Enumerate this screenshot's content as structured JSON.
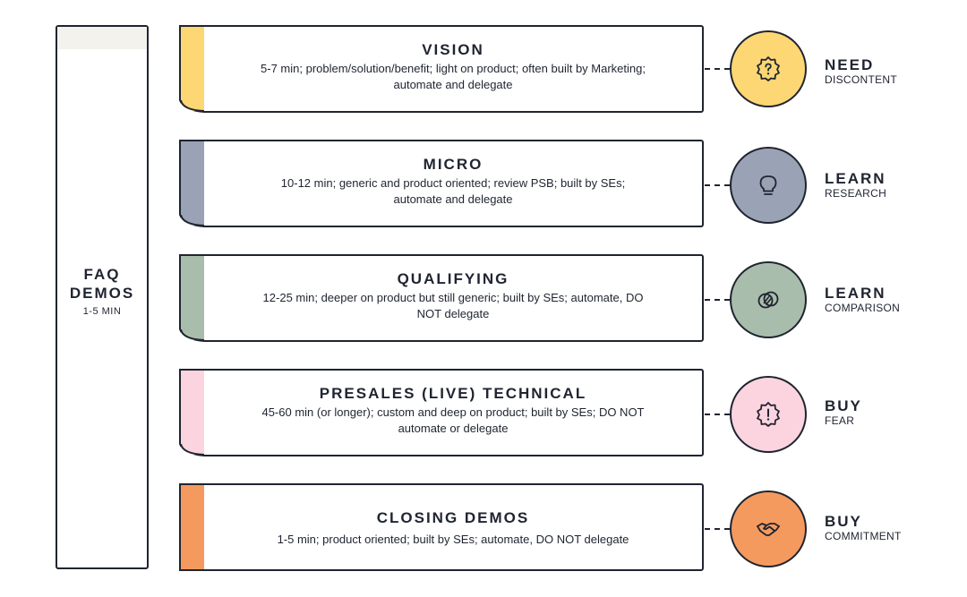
{
  "faq": {
    "title_line1": "FAQ",
    "title_line2": "DEMOS",
    "duration": "1-5 MIN"
  },
  "stages": [
    {
      "title": "VISION",
      "description": "5-7 min; problem/solution/benefit; light on product; often built by Marketing; automate and delegate",
      "accent": "#fdd774",
      "circle_color": "#fdd774",
      "icon": "question-badge-icon",
      "label": "NEED",
      "sublabel": "DISCONTENT"
    },
    {
      "title": "MICRO",
      "description": "10-12 min; generic and product oriented; review PSB; built by SEs; automate and delegate",
      "accent": "#9aa3b5",
      "circle_color": "#9aa3b5",
      "icon": "lightbulb-icon",
      "label": "LEARN",
      "sublabel": "RESEARCH"
    },
    {
      "title": "QUALIFYING",
      "description": "12-25 min; deeper on product but still generic; built by SEs; automate, DO NOT delegate",
      "accent": "#a9bdac",
      "circle_color": "#a9bdac",
      "icon": "overlapping-circles-icon",
      "label": "LEARN",
      "sublabel": "COMPARISON"
    },
    {
      "title": "PRESALES (LIVE) TECHNICAL",
      "description": "45-60 min (or longer); custom and deep on product; built by SEs; DO NOT automate or delegate",
      "accent": "#fbd4df",
      "circle_color": "#fbd4df",
      "icon": "alert-badge-icon",
      "label": "BUY",
      "sublabel": "FEAR"
    },
    {
      "title": "CLOSING DEMOS",
      "description": "1-5 min; product oriented; built by SEs; automate, DO NOT delegate",
      "accent": "#f59a5e",
      "circle_color": "#f59a5e",
      "icon": "handshake-icon",
      "label": "BUY",
      "sublabel": "COMMITMENT"
    }
  ]
}
